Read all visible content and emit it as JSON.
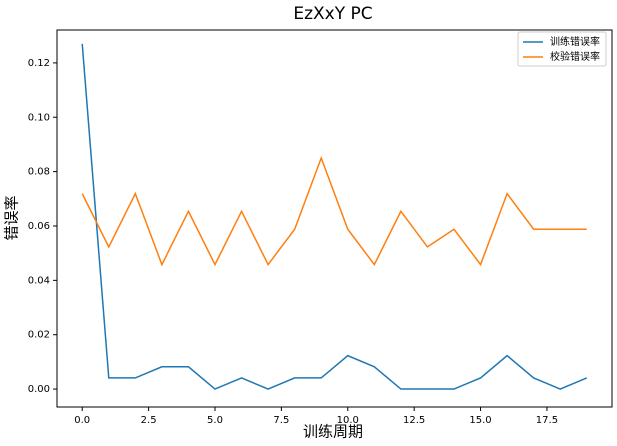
{
  "chart_data": {
    "type": "line",
    "title": "EzXxY PC",
    "x_label": "训练周期",
    "y_label": "错误率",
    "x": [
      0,
      1,
      2,
      3,
      4,
      5,
      6,
      7,
      8,
      9,
      10,
      11,
      12,
      13,
      14,
      15,
      16,
      17,
      18,
      19
    ],
    "series": [
      {
        "name": "训练错误率",
        "color": "#1f77b4",
        "values": [
          0.127,
          0.0041,
          0.0041,
          0.0082,
          0.0082,
          0,
          0.0041,
          0,
          0.0041,
          0.0041,
          0.0123,
          0.0082,
          0,
          0,
          0,
          0.0041,
          0.0123,
          0.0041,
          0,
          0.0041
        ]
      },
      {
        "name": "校验错误率",
        "color": "#ff7f0e",
        "values": [
          0.0719,
          0.0523,
          0.0719,
          0.0458,
          0.0654,
          0.0458,
          0.0654,
          0.0458,
          0.0588,
          0.085,
          0.0588,
          0.0458,
          0.0654,
          0.0523,
          0.0588,
          0.0458,
          0.0719,
          0.0588,
          0.0588,
          0.0588
        ]
      }
    ],
    "xlim": [
      -0.95,
      19.95
    ],
    "xticks": [
      {
        "value": 0,
        "label": "0.0"
      },
      2.5,
      {
        "value": 5,
        "label": "5.0"
      },
      7.5,
      {
        "value": 10,
        "label": "10.0"
      },
      12.5,
      {
        "value": 15,
        "label": "15.0"
      },
      17.5
    ],
    "ylim": [
      -0.0066,
      0.1321
    ],
    "yticks": [
      {
        "value": 0,
        "label": "0.00"
      },
      0.02,
      0.04,
      0.06,
      0.08,
      {
        "value": 0.1,
        "label": "0.10"
      },
      0.12
    ],
    "grid": false,
    "legend": "upper right"
  }
}
